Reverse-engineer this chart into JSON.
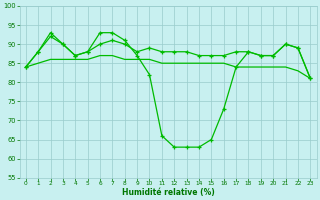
{
  "title": "",
  "xlabel": "Humidité relative (%)",
  "ylabel": "",
  "bg_color": "#c8f0f0",
  "grid_color": "#99cccc",
  "line_color": "#00bb00",
  "x": [
    0,
    1,
    2,
    3,
    4,
    5,
    6,
    7,
    8,
    9,
    10,
    11,
    12,
    13,
    14,
    15,
    16,
    17,
    18,
    19,
    20,
    21,
    22,
    23
  ],
  "line1": [
    84,
    88,
    93,
    90,
    87,
    88,
    93,
    93,
    91,
    87,
    82,
    66,
    63,
    63,
    63,
    65,
    73,
    84,
    88,
    87,
    87,
    90,
    89,
    81
  ],
  "line2": [
    84,
    88,
    92,
    90,
    87,
    88,
    90,
    91,
    90,
    88,
    89,
    88,
    88,
    88,
    87,
    87,
    87,
    88,
    88,
    87,
    87,
    90,
    89,
    81
  ],
  "line3": [
    84,
    85,
    86,
    86,
    86,
    86,
    87,
    87,
    86,
    86,
    86,
    85,
    85,
    85,
    85,
    85,
    85,
    84,
    84,
    84,
    84,
    84,
    83,
    81
  ],
  "ylim": [
    55,
    100
  ],
  "yticks": [
    55,
    60,
    65,
    70,
    75,
    80,
    85,
    90,
    95,
    100
  ],
  "xticks": [
    0,
    1,
    2,
    3,
    4,
    5,
    6,
    7,
    8,
    9,
    10,
    11,
    12,
    13,
    14,
    15,
    16,
    17,
    18,
    19,
    20,
    21,
    22,
    23
  ]
}
